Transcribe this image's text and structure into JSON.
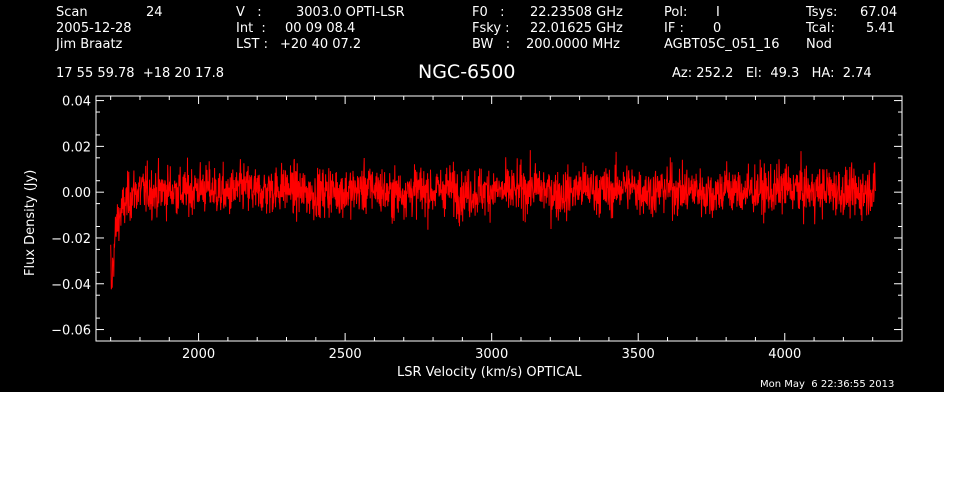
{
  "header": {
    "scan_label": "Scan",
    "scan_value": "24",
    "date": "2005-12-28",
    "observer": "Jim Braatz",
    "v_label": "V   :",
    "v_value": "3003.0 OPTI-LSR",
    "int_label": "Int  :",
    "int_value": "00 09 08.4",
    "lst_label": "LST :",
    "lst_value": "+20 40 07.2",
    "f0_label": "F0   :",
    "f0_value": "22.23508 GHz",
    "fsky_label": "Fsky :",
    "fsky_value": "22.01625 GHz",
    "bw_label": "BW   :",
    "bw_value": "200.0000 MHz",
    "pol_label": "Pol:",
    "pol_value": "I",
    "if_label": "IF :",
    "if_value": "0",
    "project": "AGBT05C_051_16",
    "tsys_label": "Tsys:",
    "tsys_value": "67.04",
    "tcal_label": "Tcal:",
    "tcal_value": "5.41",
    "proc": "Nod",
    "coords": "17 55 59.78  +18 20 17.8",
    "source": "NGC-6500",
    "azelha": "Az: 252.2   El:  49.3   HA:  2.74",
    "timestamp": "Mon May  6 22:36:55 2013"
  },
  "colors": {
    "background": "#000000",
    "axes": "#ffffff",
    "trace": "#ff0000"
  },
  "chart_data": {
    "type": "line",
    "title": "NGC-6500",
    "xlabel": "LSR Velocity (km/s) OPTICAL",
    "ylabel": "Flux Density (Jy)",
    "xlim": [
      1650,
      4400
    ],
    "ylim": [
      -0.065,
      0.042
    ],
    "x_ticks": [
      2000,
      2500,
      3000,
      3500,
      4000
    ],
    "x_tick_labels": [
      "2000",
      "2500",
      "3000",
      "3500",
      "4000"
    ],
    "y_ticks": [
      -0.06,
      -0.04,
      -0.02,
      0.0,
      0.02,
      0.04
    ],
    "y_tick_labels": [
      "−0.06",
      "−0.04",
      "−0.02",
      "0.00",
      "0.02",
      "0.04"
    ],
    "grid": false,
    "series": [
      {
        "x": [
          1700,
          1703,
          1706,
          1710,
          1715,
          1720,
          1725,
          1730,
          1740,
          1750,
          1760,
          1780,
          1800,
          1850,
          1900,
          1950,
          2000,
          2050,
          2100,
          2150,
          2200,
          2250,
          2300,
          2350,
          2400,
          2450,
          2500,
          2550,
          2600,
          2650,
          2700,
          2750,
          2800,
          2850,
          2900,
          2950,
          3000,
          3050,
          3100,
          3150,
          3200,
          3250,
          3300,
          3350,
          3400,
          3450,
          3500,
          3550,
          3600,
          3650,
          3700,
          3750,
          3800,
          3850,
          3900,
          3950,
          4000,
          4050,
          4100,
          4150,
          4200,
          4250,
          4300,
          4310
        ],
        "y": [
          -0.03,
          -0.045,
          -0.035,
          -0.028,
          -0.02,
          -0.015,
          -0.012,
          -0.01,
          -0.008,
          -0.005,
          -0.003,
          0.0,
          0.001,
          0.0,
          0.001,
          0.0,
          0.002,
          0.001,
          -0.001,
          0.002,
          0.0,
          0.001,
          0.002,
          0.0,
          -0.001,
          0.001,
          0.0,
          0.001,
          0.002,
          -0.001,
          0.0,
          0.001,
          0.0,
          0.002,
          -0.001,
          0.0,
          0.001,
          0.0,
          0.001,
          0.002,
          0.0,
          -0.001,
          0.002,
          0.001,
          0.0,
          0.003,
          0.001,
          0.0,
          0.002,
          0.0,
          0.001,
          -0.001,
          0.002,
          0.0,
          0.001,
          0.0,
          0.002,
          0.001,
          0.0,
          0.001,
          0.0,
          -0.001,
          0.002,
          0.0
        ],
        "noise_rms": 0.009,
        "peak_noise": 0.028
      }
    ]
  }
}
